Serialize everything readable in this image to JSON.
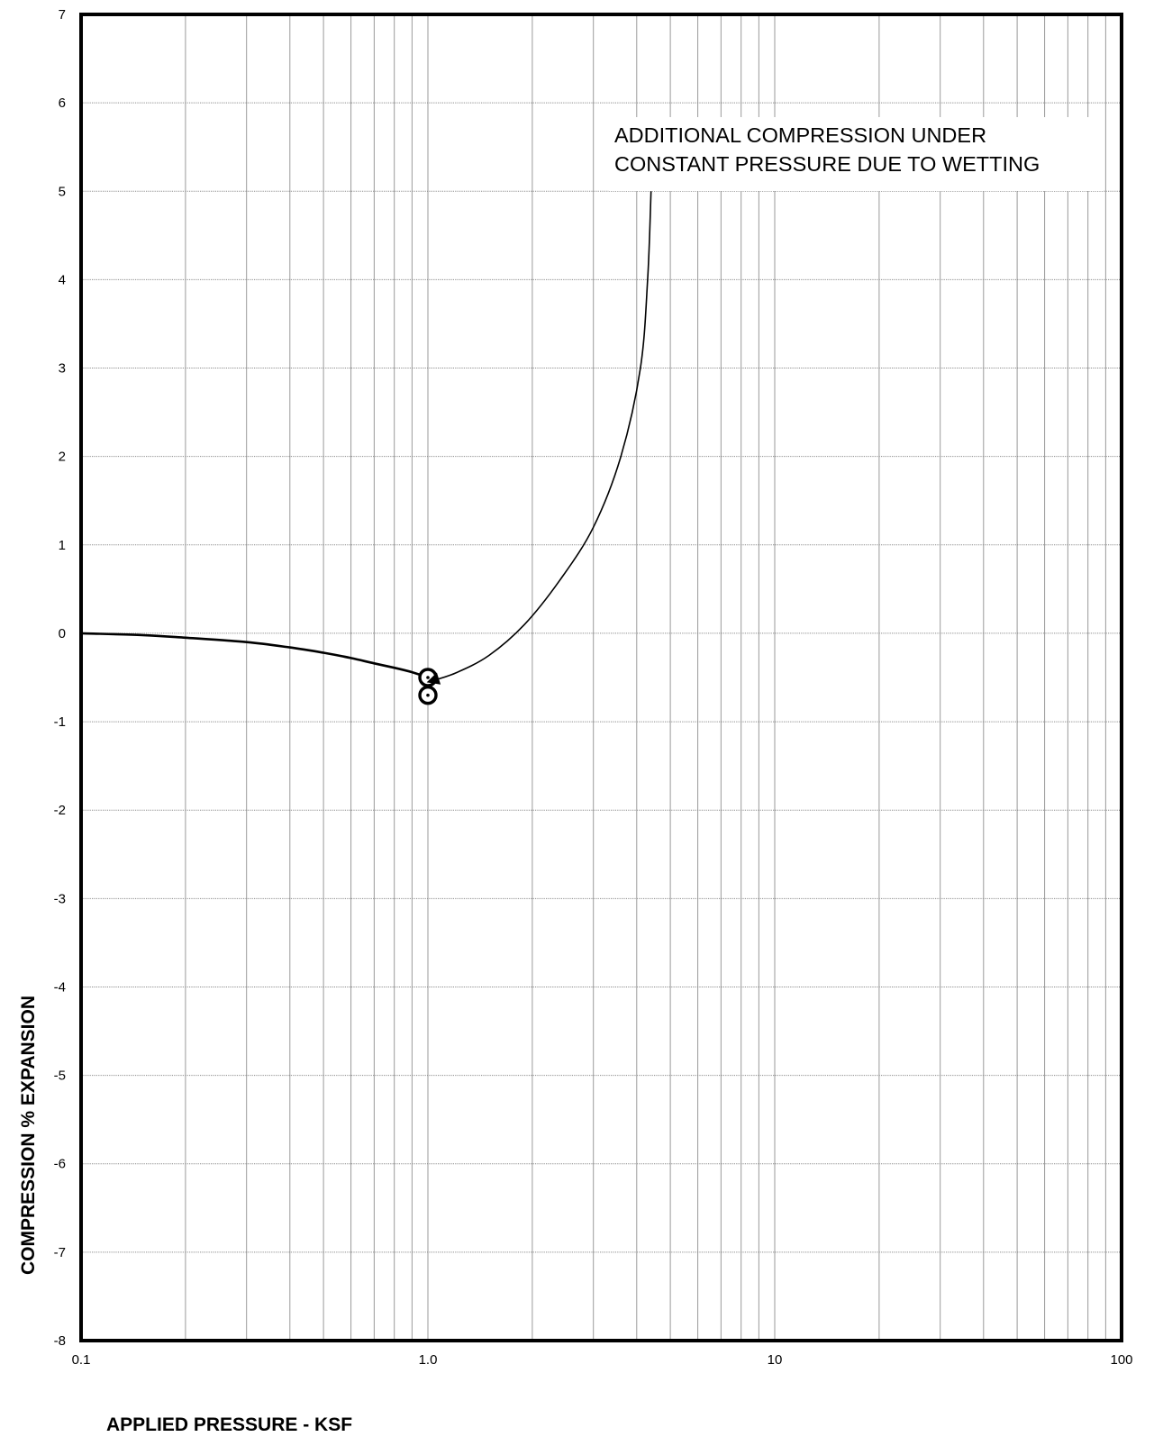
{
  "chart_data": {
    "type": "line",
    "title": "",
    "xlabel": "APPLIED PRESSURE - KSF",
    "ylabel": "COMPRESSION % EXPANSION",
    "x_scale": "log",
    "xlim": [
      0.1,
      100
    ],
    "ylim": [
      -8,
      7
    ],
    "x_ticks": [
      0.1,
      1,
      10,
      100
    ],
    "x_tick_labels": [
      "0.1",
      "1.0",
      "10",
      "100"
    ],
    "y_ticks": [
      7,
      6,
      5,
      4,
      3,
      2,
      1,
      0,
      -1,
      -2,
      -3,
      -4,
      -5,
      -6,
      -7,
      -8
    ],
    "y_tick_labels": [
      "7",
      "6",
      "5",
      "4",
      "3",
      "2",
      "1",
      "0",
      "-1",
      "-2",
      "-3",
      "-4",
      "-5",
      "-6",
      "-7",
      "-8"
    ],
    "grid": true,
    "series": [
      {
        "x": [
          0.1,
          0.15,
          0.2,
          0.3,
          0.4,
          0.5,
          0.6,
          0.7,
          0.8,
          0.9,
          1.0
        ],
        "y": [
          0,
          -0.02,
          -0.05,
          -0.1,
          -0.16,
          -0.22,
          -0.28,
          -0.34,
          -0.39,
          -0.44,
          -0.5
        ],
        "color": "#000000"
      }
    ],
    "points": [
      {
        "x": 1.0,
        "y": -0.5
      },
      {
        "x": 1.0,
        "y": -0.7
      }
    ],
    "annotations": [
      {
        "lines": [
          "ADDITIONAL COMPRESSION UNDER",
          "CONSTANT PRESSURE DUE TO WETTING"
        ],
        "arrow_path": {
          "x": [
            4.4,
            4.3,
            4.1,
            3.6,
            3.0,
            2.4,
            1.9,
            1.5,
            1.2,
            1.0
          ],
          "y": [
            5.0,
            4.0,
            3.0,
            2.0,
            1.2,
            0.6,
            0.1,
            -0.25,
            -0.45,
            -0.55
          ]
        }
      }
    ]
  }
}
